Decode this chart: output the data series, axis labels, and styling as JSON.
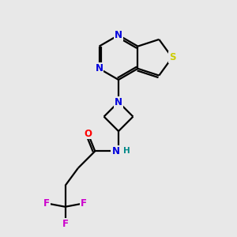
{
  "bg_color": "#e8e8e8",
  "atom_colors": {
    "C": "#000000",
    "N": "#0000dd",
    "S": "#cccc00",
    "O": "#ff0000",
    "F": "#cc00cc",
    "H": "#008888"
  },
  "bond_color": "#000000",
  "line_width": 1.6,
  "fig_size": [
    3.0,
    3.0
  ],
  "dpi": 100
}
